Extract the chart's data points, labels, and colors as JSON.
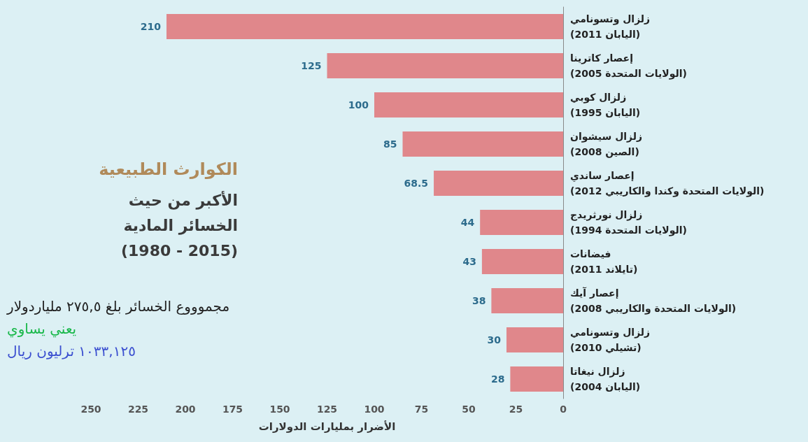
{
  "chart_data": {
    "type": "bar",
    "orientation": "horizontal",
    "title": "الكوارث الطبيعية",
    "subtitle": "الأكبر من حيث\nالخسائر المادية\n(1980 - 2015)",
    "xlabel": "الأضرار بمليارات الدولارات",
    "categories": [
      "زلزال وتسونامي\n(اليابان 2011)",
      "إعصار كاترينا\n(الولايات المتحدة 2005)",
      "زلزال كوبي\n(اليابان 1995)",
      "زلزال سيشوان\n(الصين 2008)",
      "إعصار ساندي\n(الولايات المتحدة وكندا والكاريبي 2012)",
      "زلزال نورثريدج\n(الولايات المتحدة 1994)",
      "فيضانات\n(تايلاند 2011)",
      "إعصار آيك\n(الولايات المتحدة والكاريبي 2008)",
      "زلزال وتسونامي\n(تشيلي 2010)",
      "زلزال نيغاتا\n(اليابان 2004)"
    ],
    "values": [
      210,
      125,
      100,
      85,
      68.5,
      44,
      43,
      38,
      30,
      28
    ],
    "color": "#e0878b",
    "data_labels": true,
    "xlim": [
      250,
      0
    ],
    "xticks": [
      250,
      225,
      200,
      175,
      150,
      125,
      100,
      75,
      50,
      25,
      0
    ],
    "annotations": [
      "مجموووع الخسائر بلغ ٢٧٥,٥ ملياردولار",
      "يعني يساوي",
      "١٠٣٣,١٢٥ ترليون ريال"
    ]
  }
}
